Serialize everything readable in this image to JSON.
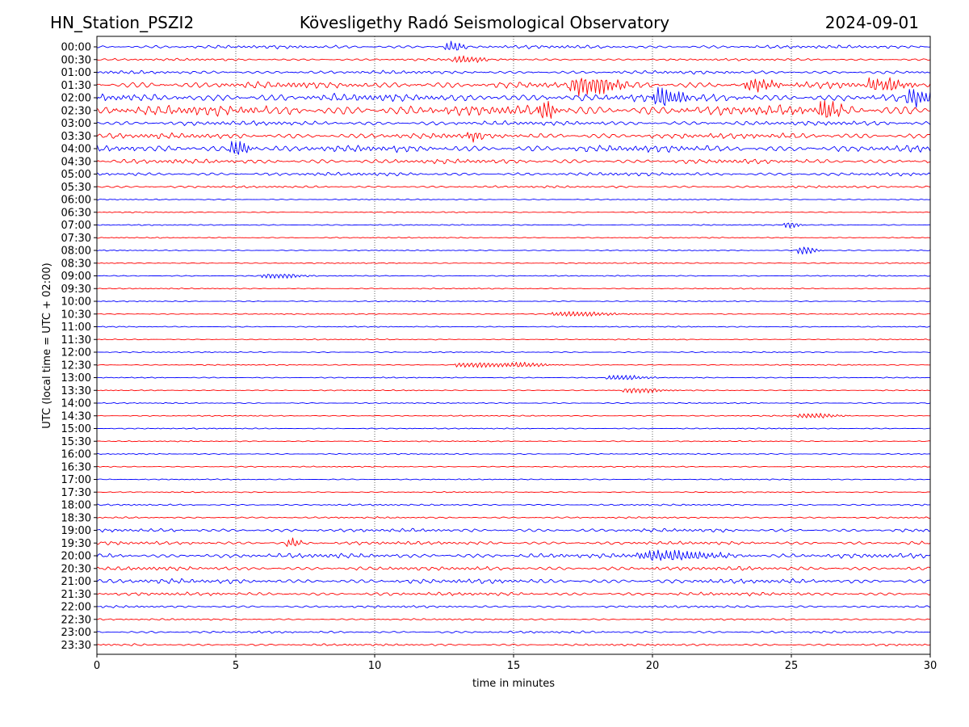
{
  "header": {
    "station": "HN_Station_PSZI2",
    "observatory": "Kövesligethy Radó Seismological Observatory",
    "date": "2024-09-01"
  },
  "colors": {
    "trace_a": "#0000ff",
    "trace_b": "#ff0000",
    "axis": "#000000",
    "grid": "#000000"
  },
  "chart_data": {
    "type": "line",
    "title": "Kövesligethy Radó Seismological Observatory",
    "xlabel": "time in minutes",
    "ylabel": "UTC (local time = UTC + 02:00)",
    "xlim": [
      0,
      30
    ],
    "x_ticks": [
      0,
      5,
      10,
      15,
      20,
      25,
      30
    ],
    "x_tick_labels": [
      "0",
      "5",
      "10",
      "15",
      "20",
      "25",
      "30"
    ],
    "grid": "vertical dotted lines at x ticks",
    "row_labels": [
      "00:00",
      "00:30",
      "01:00",
      "01:30",
      "02:00",
      "02:30",
      "03:00",
      "03:30",
      "04:00",
      "04:30",
      "05:00",
      "05:30",
      "06:00",
      "06:30",
      "07:00",
      "07:30",
      "08:00",
      "08:30",
      "09:00",
      "09:30",
      "10:00",
      "10:30",
      "11:00",
      "11:30",
      "12:00",
      "12:30",
      "13:00",
      "13:30",
      "14:00",
      "14:30",
      "15:00",
      "15:30",
      "16:00",
      "16:30",
      "17:00",
      "17:30",
      "18:00",
      "18:30",
      "19:00",
      "19:30",
      "20:00",
      "20:30",
      "21:00",
      "21:30",
      "22:00",
      "22:30",
      "23:00",
      "23:30"
    ],
    "row_noise_amplitude": [
      3,
      2,
      3,
      6,
      7,
      9,
      4,
      5,
      6,
      4,
      3,
      2,
      1,
      1,
      1,
      1,
      1,
      1,
      1,
      1,
      1,
      1,
      1,
      1,
      1,
      1,
      1,
      1,
      1,
      1,
      1,
      1,
      1,
      1,
      1,
      1,
      1.5,
      1.5,
      3,
      3,
      4,
      3.5,
      4,
      3,
      2,
      1.5,
      2,
      2
    ],
    "events": [
      {
        "row": "00:00",
        "minute": 12.6,
        "amplitude": 6,
        "duration": 0.5
      },
      {
        "row": "00:30",
        "minute": 13.0,
        "amplitude": 4,
        "duration": 0.8
      },
      {
        "row": "01:30",
        "minute": 17.4,
        "amplitude": 11,
        "duration": 1.2
      },
      {
        "row": "01:30",
        "minute": 23.5,
        "amplitude": 7,
        "duration": 0.8
      },
      {
        "row": "01:30",
        "minute": 28.0,
        "amplitude": 7,
        "duration": 1.0
      },
      {
        "row": "02:00",
        "minute": 20.2,
        "amplitude": 10,
        "duration": 0.8
      },
      {
        "row": "02:00",
        "minute": 29.3,
        "amplitude": 9,
        "duration": 0.8
      },
      {
        "row": "02:30",
        "minute": 16.0,
        "amplitude": 10,
        "duration": 0.5
      },
      {
        "row": "02:30",
        "minute": 26.1,
        "amplitude": 12,
        "duration": 0.5
      },
      {
        "row": "03:30",
        "minute": 13.4,
        "amplitude": 7,
        "duration": 0.3
      },
      {
        "row": "04:00",
        "minute": 4.9,
        "amplitude": 9,
        "duration": 0.5
      },
      {
        "row": "07:00",
        "minute": 24.8,
        "amplitude": 4,
        "duration": 0.4
      },
      {
        "row": "08:00",
        "minute": 25.3,
        "amplitude": 5,
        "duration": 0.5
      },
      {
        "row": "09:00",
        "minute": 6.2,
        "amplitude": 3,
        "duration": 1.0
      },
      {
        "row": "10:30",
        "minute": 16.8,
        "amplitude": 3,
        "duration": 1.5
      },
      {
        "row": "12:30",
        "minute": 13.3,
        "amplitude": 3,
        "duration": 1.5
      },
      {
        "row": "12:30",
        "minute": 15.0,
        "amplitude": 3,
        "duration": 1.0
      },
      {
        "row": "13:00",
        "minute": 18.6,
        "amplitude": 3,
        "duration": 1.0
      },
      {
        "row": "13:30",
        "minute": 19.2,
        "amplitude": 3,
        "duration": 1.0
      },
      {
        "row": "14:30",
        "minute": 25.5,
        "amplitude": 3,
        "duration": 1.0
      },
      {
        "row": "19:30",
        "minute": 6.9,
        "amplitude": 5,
        "duration": 0.4
      },
      {
        "row": "20:00",
        "minute": 20.0,
        "amplitude": 6,
        "duration": 2.0
      }
    ]
  }
}
